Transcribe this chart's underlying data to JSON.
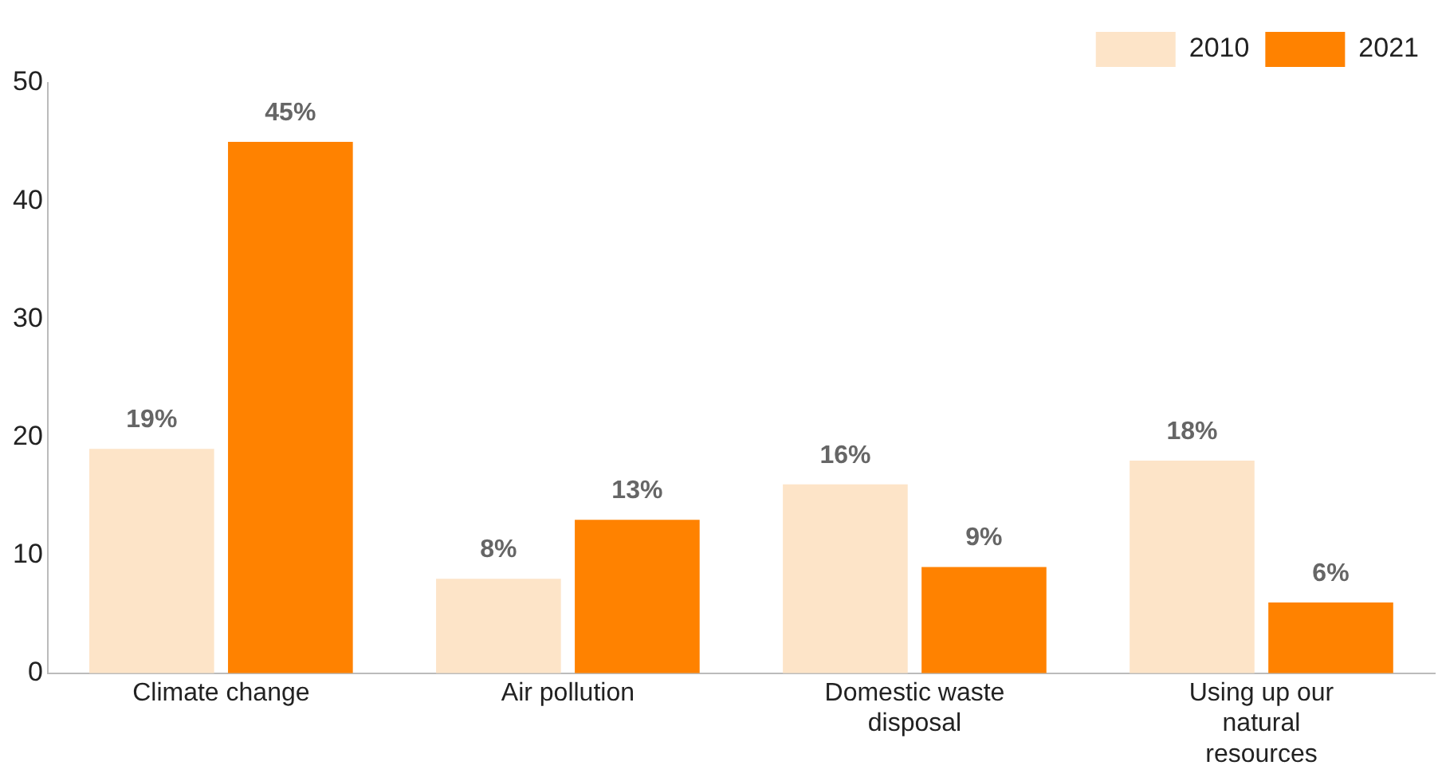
{
  "chart_data": {
    "type": "bar",
    "categories": [
      "Climate change",
      "Air pollution",
      "Domestic waste disposal",
      "Using up our natural resources"
    ],
    "series": [
      {
        "name": "2010",
        "color": "#fde4c8",
        "values": [
          19,
          8,
          16,
          18
        ],
        "value_labels": [
          "19%",
          "8%",
          "16%",
          "18%"
        ]
      },
      {
        "name": "2021",
        "color": "#ff8200",
        "values": [
          45,
          13,
          9,
          6
        ],
        "value_labels": [
          "45%",
          "13%",
          "9%",
          "6%"
        ]
      }
    ],
    "ylim": [
      0,
      50
    ],
    "yticks": [
      0,
      10,
      20,
      30,
      40,
      50
    ],
    "grid": false,
    "legend": "top right"
  }
}
